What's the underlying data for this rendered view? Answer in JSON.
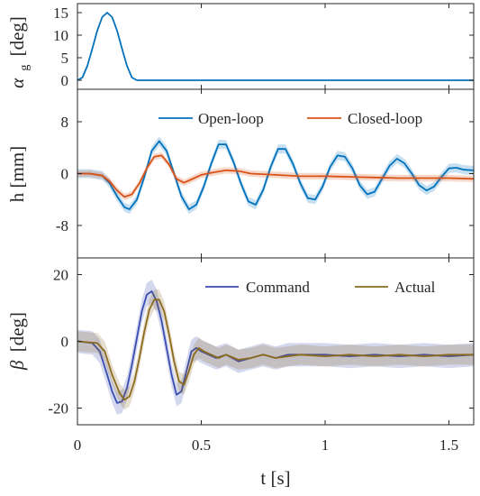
{
  "chart_data": [
    {
      "type": "line",
      "ylabel_main": "α",
      "ylabel_sub": "g",
      "ylabel_unit": "[deg]",
      "xlim": [
        0,
        1.6
      ],
      "ylim": [
        -2,
        17
      ],
      "yticks": [
        0,
        5,
        10,
        15
      ],
      "ytick_labels": [
        "0",
        "5",
        "10",
        "15"
      ],
      "series": [
        {
          "color": "#0072BD",
          "x": [
            0,
            0.02,
            0.04,
            0.06,
            0.08,
            0.1,
            0.12,
            0.14,
            0.16,
            0.18,
            0.2,
            0.22,
            0.24,
            0.26,
            0.28,
            0.3,
            0.5,
            0.8,
            1.0,
            1.2,
            1.4,
            1.6
          ],
          "y": [
            0,
            0.6,
            3.2,
            7.0,
            11.0,
            14.0,
            15.0,
            14.0,
            11.0,
            7.0,
            3.2,
            0.6,
            0,
            0,
            0,
            0,
            0,
            0,
            0,
            0,
            0,
            0
          ]
        }
      ]
    },
    {
      "type": "line",
      "ylabel": "h [mm]",
      "xlim": [
        0,
        1.6
      ],
      "ylim": [
        -13,
        13
      ],
      "yticks": [
        -8,
        0,
        8
      ],
      "ytick_labels": [
        "-8",
        "0",
        "8"
      ],
      "legend": "top-right",
      "series": [
        {
          "name": "Open-loop",
          "color": "#0072BD",
          "x": [
            0,
            0.05,
            0.1,
            0.13,
            0.16,
            0.19,
            0.21,
            0.24,
            0.27,
            0.3,
            0.33,
            0.36,
            0.39,
            0.42,
            0.45,
            0.48,
            0.51,
            0.54,
            0.57,
            0.6,
            0.63,
            0.66,
            0.69,
            0.72,
            0.75,
            0.78,
            0.81,
            0.84,
            0.87,
            0.9,
            0.93,
            0.96,
            0.99,
            1.02,
            1.05,
            1.08,
            1.11,
            1.14,
            1.17,
            1.2,
            1.23,
            1.26,
            1.29,
            1.32,
            1.35,
            1.38,
            1.41,
            1.44,
            1.47,
            1.5,
            1.53,
            1.56,
            1.6
          ],
          "y": [
            0,
            0,
            -0.3,
            -1.5,
            -3.5,
            -5.2,
            -5.5,
            -4.0,
            -0.5,
            3.5,
            5.0,
            3.5,
            0,
            -3.5,
            -5.5,
            -4.8,
            -2.0,
            1.5,
            4.5,
            4.5,
            1.8,
            -1.5,
            -4.3,
            -4.8,
            -2.5,
            1.0,
            3.8,
            3.8,
            1.5,
            -1.5,
            -3.8,
            -4.0,
            -2.0,
            1.0,
            2.8,
            2.6,
            0.8,
            -1.8,
            -3.2,
            -2.8,
            -0.8,
            1.2,
            2.3,
            1.6,
            0,
            -1.8,
            -2.6,
            -2.0,
            -0.5,
            0.8,
            0.9,
            0.6,
            0.5
          ]
        },
        {
          "name": "Closed-loop",
          "color": "#D95319",
          "x": [
            0,
            0.05,
            0.1,
            0.13,
            0.16,
            0.19,
            0.22,
            0.25,
            0.28,
            0.31,
            0.34,
            0.37,
            0.4,
            0.43,
            0.46,
            0.5,
            0.55,
            0.6,
            0.65,
            0.7,
            0.8,
            0.9,
            1.0,
            1.1,
            1.2,
            1.3,
            1.4,
            1.5,
            1.6
          ],
          "y": [
            0,
            0,
            -0.3,
            -1.2,
            -2.6,
            -3.6,
            -3.2,
            -1.5,
            0.8,
            2.6,
            2.8,
            1.4,
            -0.8,
            -1.4,
            -0.9,
            -0.2,
            0.2,
            0.5,
            0.4,
            0,
            -0.2,
            -0.4,
            -0.4,
            -0.5,
            -0.6,
            -0.7,
            -0.7,
            -0.7,
            -0.8
          ]
        }
      ]
    },
    {
      "type": "line",
      "ylabel_main": "β",
      "ylabel_unit": "[deg]",
      "xlabel": "t [s]",
      "xlim": [
        0,
        1.6
      ],
      "ylim": [
        -25,
        25
      ],
      "yticks": [
        -20,
        0,
        20
      ],
      "ytick_labels": [
        "-20",
        "0",
        "20"
      ],
      "xticks": [
        0,
        0.5,
        1,
        1.5
      ],
      "xtick_labels": [
        "0",
        "0.5",
        "1",
        "1.5"
      ],
      "legend": "top-right",
      "series": [
        {
          "name": "Command",
          "color": "#3A4DB0",
          "x": [
            0,
            0.06,
            0.09,
            0.12,
            0.14,
            0.16,
            0.18,
            0.2,
            0.22,
            0.24,
            0.26,
            0.28,
            0.3,
            0.32,
            0.34,
            0.36,
            0.38,
            0.4,
            0.42,
            0.44,
            0.46,
            0.48,
            0.5,
            0.53,
            0.56,
            0.6,
            0.65,
            0.7,
            0.75,
            0.8,
            0.85,
            0.9,
            1.0,
            1.1,
            1.2,
            1.3,
            1.4,
            1.5,
            1.6
          ],
          "y": [
            0,
            -0.5,
            -3,
            -10,
            -15,
            -18.5,
            -18,
            -14,
            -7,
            1,
            9,
            14,
            15,
            12,
            6,
            -2,
            -10,
            -16,
            -15,
            -9,
            -3,
            -2,
            -3,
            -4,
            -5,
            -4,
            -6,
            -5,
            -4,
            -5,
            -4,
            -4,
            -4,
            -4.5,
            -4,
            -4.5,
            -4,
            -4.5,
            -4
          ]
        },
        {
          "name": "Actual",
          "color": "#8C6B1F",
          "x": [
            0,
            0.08,
            0.11,
            0.14,
            0.17,
            0.19,
            0.21,
            0.23,
            0.25,
            0.27,
            0.29,
            0.31,
            0.33,
            0.35,
            0.37,
            0.39,
            0.41,
            0.43,
            0.45,
            0.47,
            0.49,
            0.51,
            0.54,
            0.57,
            0.6,
            0.65,
            0.7,
            0.75,
            0.8,
            0.85,
            0.9,
            1.0,
            1.1,
            1.2,
            1.3,
            1.4,
            1.5,
            1.6
          ],
          "y": [
            0,
            -0.5,
            -3,
            -10,
            -15.5,
            -17.5,
            -16.5,
            -12,
            -5,
            3,
            9.5,
            12.5,
            12.5,
            9,
            2,
            -6,
            -12,
            -13,
            -9,
            -4,
            -2,
            -3,
            -4,
            -5,
            -4,
            -5.5,
            -5,
            -4,
            -5,
            -4.5,
            -4,
            -4.5,
            -4,
            -4.5,
            -4,
            -4.5,
            -4,
            -4
          ]
        }
      ]
    }
  ]
}
